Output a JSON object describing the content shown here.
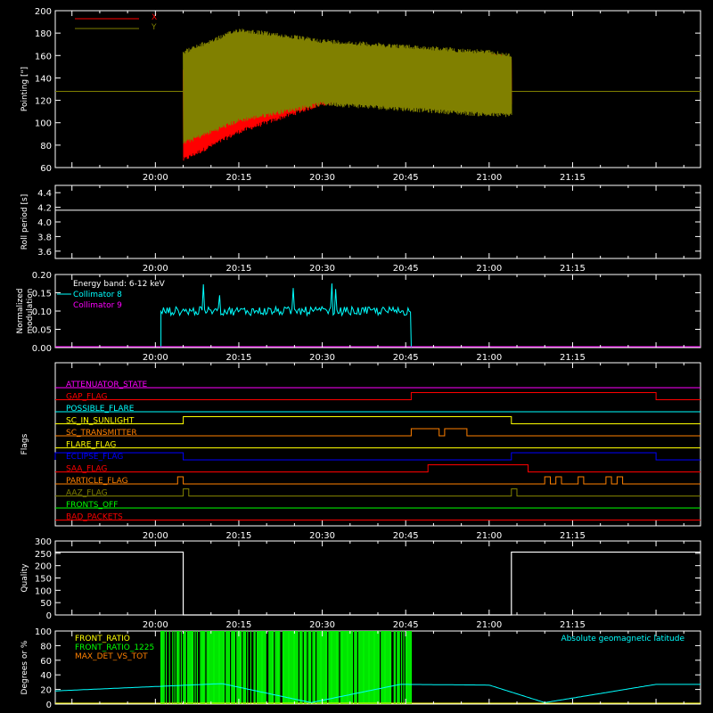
{
  "chart_data": [
    {
      "id": "pointing",
      "type": "line",
      "ylabel": "Pointing [\"]",
      "ylim": [
        60,
        200
      ],
      "yticks": [
        60,
        80,
        100,
        120,
        140,
        160,
        180,
        200
      ],
      "xlim_minutes": [
        1182,
        1298
      ],
      "xticks": [
        "20:00",
        "20:15",
        "20:30",
        "20:45",
        "21:00",
        "21:15"
      ],
      "series": [
        {
          "name": "X",
          "color": "#ff0000",
          "baseline": 128,
          "active_start": "20:05",
          "active_end": "21:04",
          "envelope_time": [
            "20:05",
            "20:15",
            "20:30",
            "20:45",
            "21:00",
            "21:04"
          ],
          "envelope_high": [
            150,
            165,
            160,
            162,
            162,
            160
          ],
          "envelope_low": [
            65,
            90,
            115,
            122,
            118,
            115
          ]
        },
        {
          "name": "Y",
          "color": "#808000",
          "baseline": 128,
          "active_start": "20:05",
          "active_end": "21:04",
          "envelope_time": [
            "20:05",
            "20:15",
            "20:30",
            "20:45",
            "21:00",
            "21:04"
          ],
          "envelope_high": [
            165,
            185,
            175,
            170,
            165,
            162
          ],
          "envelope_low": [
            80,
            100,
            115,
            110,
            105,
            105
          ]
        }
      ]
    },
    {
      "id": "roll",
      "type": "line",
      "ylabel": "Roll period [s]",
      "ylim": [
        3.5,
        4.5
      ],
      "yticks": [
        "3.6",
        "3.8",
        "4.0",
        "4.2",
        "4.4"
      ],
      "xticks": [
        "20:00",
        "20:15",
        "20:30",
        "20:45",
        "21:00",
        "21:15"
      ],
      "series": [
        {
          "color": "#ffffff",
          "value": 4.16
        }
      ]
    },
    {
      "id": "modulation",
      "type": "line",
      "ylabel": [
        "Normalized",
        "modulation"
      ],
      "ylim": [
        0,
        0.2
      ],
      "yticks": [
        "0.00",
        "0.05",
        "0.10",
        "0.15",
        "0.20"
      ],
      "xticks": [
        "20:00",
        "20:15",
        "20:30",
        "20:45",
        "21:00",
        "21:15"
      ],
      "legend": {
        "title": "Energy band: 6-12 keV"
      },
      "series": [
        {
          "name": "Collimator 8",
          "color": "#00ffff",
          "active_start": "20:01",
          "active_end": "20:46",
          "mean": 0.1,
          "noise": 0.012
        },
        {
          "name": "Collimator 9",
          "color": "#ff00ff",
          "value": 0
        }
      ]
    },
    {
      "id": "flags",
      "type": "line",
      "ylabel": "Flags",
      "xticks": [
        "20:00",
        "20:15",
        "20:30",
        "20:45",
        "21:00",
        "21:15"
      ],
      "series": [
        {
          "name": "ATTENUATOR_STATE",
          "color": "#ff00ff",
          "steps": []
        },
        {
          "name": "GAP_FLAG",
          "color": "#ff0000",
          "steps": [
            [
              "20:46",
              "21:30"
            ]
          ]
        },
        {
          "name": "POSSIBLE_FLARE",
          "color": "#00ffff",
          "steps": []
        },
        {
          "name": "SC_IN_SUNLIGHT",
          "color": "#ffff00",
          "steps": [
            [
              "20:05",
              "21:04"
            ]
          ]
        },
        {
          "name": "SC_TRANSMITTER",
          "color": "#ff8000",
          "steps": [
            [
              "20:46",
              "20:51"
            ],
            [
              "20:52",
              "20:56"
            ]
          ]
        },
        {
          "name": "FLARE_FLAG",
          "color": "#ffff00",
          "steps": []
        },
        {
          "name": "ECLIPSE_FLAG",
          "color": "#0000ff",
          "steps": [
            [
              "1182",
              "20:05"
            ],
            [
              "21:04",
              "21:30"
            ]
          ]
        },
        {
          "name": "SAA_FLAG",
          "color": "#ff0000",
          "steps": [
            [
              "20:49",
              "21:07"
            ]
          ]
        },
        {
          "name": "PARTICLE_FLAG",
          "color": "#ff8000",
          "steps": [
            [
              "20:04",
              "20:05"
            ],
            [
              "21:10",
              "21:11"
            ],
            [
              "21:12",
              "21:13"
            ],
            [
              "21:16",
              "21:17"
            ],
            [
              "21:21",
              "21:22"
            ],
            [
              "21:23",
              "21:24"
            ]
          ]
        },
        {
          "name": "AAZ_FLAG",
          "color": "#808000",
          "steps": [
            [
              "20:05",
              "20:06"
            ],
            [
              "21:04",
              "21:05"
            ]
          ]
        },
        {
          "name": "FRONTS_OFF",
          "color": "#00ff00",
          "steps": []
        },
        {
          "name": "BAD_PACKETS",
          "color": "#ff0000",
          "steps": []
        }
      ]
    },
    {
      "id": "quality",
      "type": "line",
      "ylabel": "Quality",
      "ylim": [
        0,
        300
      ],
      "yticks": [
        "0",
        "50",
        "100",
        "150",
        "200",
        "250",
        "300"
      ],
      "xticks": [
        "20:00",
        "20:15",
        "20:30",
        "20:45",
        "21:00",
        "21:15"
      ],
      "series": [
        {
          "color": "#ffffff",
          "high": 255,
          "low": 0,
          "drop_start": "20:05",
          "drop_end": "21:04"
        }
      ]
    },
    {
      "id": "geomag",
      "type": "line",
      "ylabel": "Degrees or %",
      "ylim": [
        0,
        100
      ],
      "yticks": [
        "0",
        "20",
        "40",
        "60",
        "80",
        "100"
      ],
      "annotation": "Absolute geomagnetic latitude",
      "series": [
        {
          "name": "FRONT_RATIO",
          "color": "#ffff00"
        },
        {
          "name": "FRONT_RATIO_1225",
          "color": "#00ff00",
          "active_start": "20:01",
          "active_end": "20:46"
        },
        {
          "name": "MAX_DET_VS_TOT",
          "color": "#ff8000"
        },
        {
          "name": "Absolute geomagnetic latitude",
          "color": "#00ffff",
          "time": [
            "1182",
            "20:12",
            "20:28",
            "20:44",
            "21:00",
            "21:10",
            "21:30"
          ],
          "values": [
            18,
            28,
            2,
            27,
            26,
            2,
            27
          ]
        }
      ]
    }
  ],
  "colors": {
    "background": "#000000",
    "axes": "#ffffff"
  }
}
